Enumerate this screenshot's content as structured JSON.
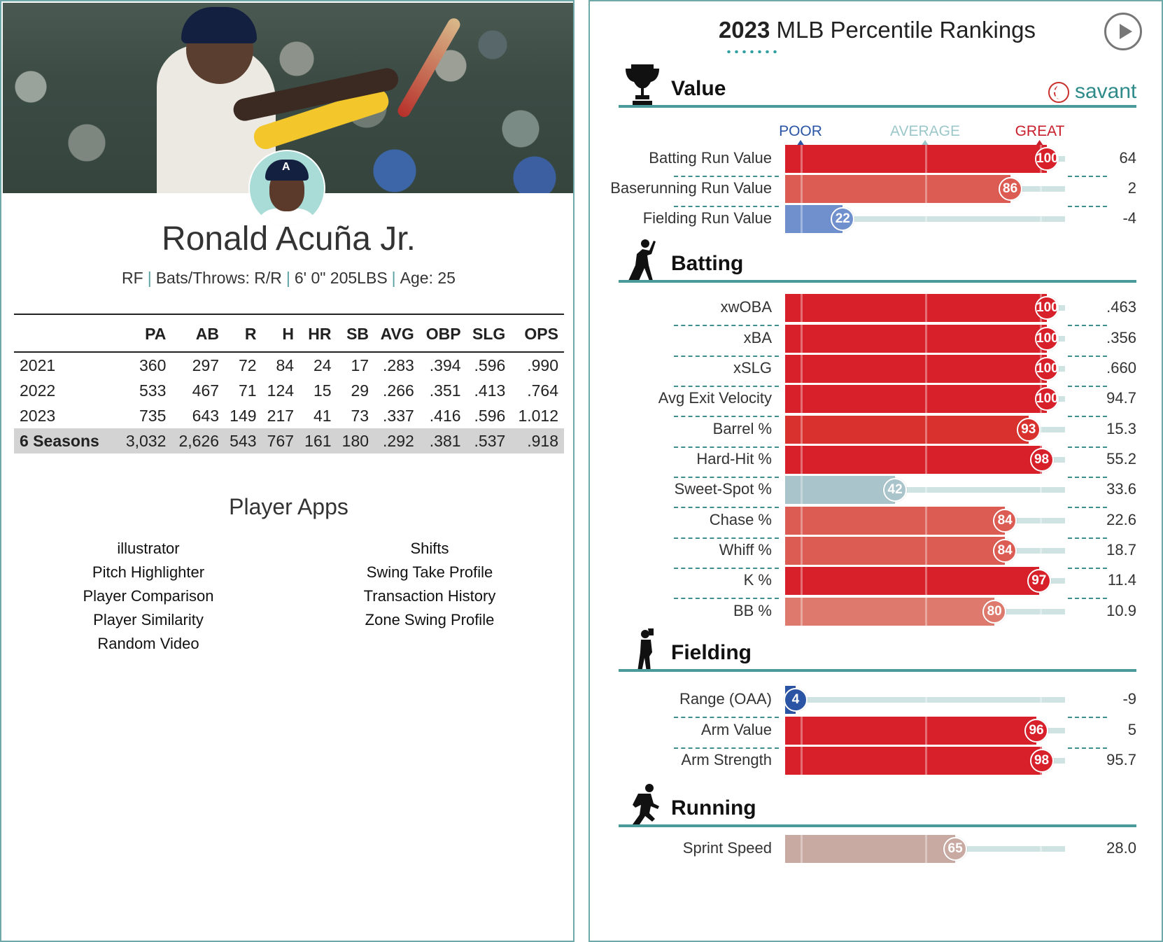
{
  "player": {
    "name": "Ronald Acuña Jr.",
    "position": "RF",
    "bats_throws": "Bats/Throws: R/R",
    "size": "6' 0\" 205LBS",
    "age": "Age: 25"
  },
  "stats": {
    "headers": [
      "",
      "PA",
      "AB",
      "R",
      "H",
      "HR",
      "SB",
      "AVG",
      "OBP",
      "SLG",
      "OPS"
    ],
    "rows": [
      [
        "2021",
        "360",
        "297",
        "72",
        "84",
        "24",
        "17",
        ".283",
        ".394",
        ".596",
        ".990"
      ],
      [
        "2022",
        "533",
        "467",
        "71",
        "124",
        "15",
        "29",
        ".266",
        ".351",
        ".413",
        ".764"
      ],
      [
        "2023",
        "735",
        "643",
        "149",
        "217",
        "41",
        "73",
        ".337",
        ".416",
        ".596",
        "1.012"
      ]
    ],
    "total": [
      "6 Seasons",
      "3,032",
      "2,626",
      "543",
      "767",
      "161",
      "180",
      ".292",
      ".381",
      ".537",
      ".918"
    ]
  },
  "apps": {
    "title": "Player Apps",
    "left": [
      "illustrator",
      "Pitch Highlighter",
      "Player Comparison",
      "Player Similarity",
      "Random Video"
    ],
    "right": [
      "Shifts",
      "Swing Take Profile",
      "Transaction History",
      "Zone Swing Profile"
    ]
  },
  "rankings": {
    "title_year": "2023",
    "title_rest": " MLB Percentile Rankings",
    "brand": "savant",
    "scale": {
      "poor": "POOR",
      "average": "AVERAGE",
      "great": "GREAT"
    },
    "colors": {
      "poor": "#2b55a4",
      "average": "#8fbfc4",
      "great": "#d8202a",
      "scale_poor": "#2b55a4",
      "scale_avg": "#9cc7c9",
      "scale_great": "#c81d2a"
    },
    "sections": [
      {
        "label": "Value",
        "icon": "trophy-icon"
      },
      {
        "label": "Batting",
        "icon": "batter-icon"
      },
      {
        "label": "Fielding",
        "icon": "fielder-icon"
      },
      {
        "label": "Running",
        "icon": "runner-icon"
      }
    ],
    "metrics": [
      {
        "section": 0,
        "name": "Batting Run Value",
        "percentile": 100,
        "value": "64"
      },
      {
        "section": 0,
        "name": "Baserunning Run Value",
        "percentile": 86,
        "value": "2"
      },
      {
        "section": 0,
        "name": "Fielding Run Value",
        "percentile": 22,
        "value": "-4"
      },
      {
        "section": 1,
        "name": "xwOBA",
        "percentile": 100,
        "value": ".463"
      },
      {
        "section": 1,
        "name": "xBA",
        "percentile": 100,
        "value": ".356"
      },
      {
        "section": 1,
        "name": "xSLG",
        "percentile": 100,
        "value": ".660"
      },
      {
        "section": 1,
        "name": "Avg Exit Velocity",
        "percentile": 100,
        "value": "94.7"
      },
      {
        "section": 1,
        "name": "Barrel %",
        "percentile": 93,
        "value": "15.3"
      },
      {
        "section": 1,
        "name": "Hard-Hit %",
        "percentile": 98,
        "value": "55.2"
      },
      {
        "section": 1,
        "name": "Sweet-Spot %",
        "percentile": 42,
        "value": "33.6"
      },
      {
        "section": 1,
        "name": "Chase %",
        "percentile": 84,
        "value": "22.6"
      },
      {
        "section": 1,
        "name": "Whiff %",
        "percentile": 84,
        "value": "18.7"
      },
      {
        "section": 1,
        "name": "K %",
        "percentile": 97,
        "value": "11.4"
      },
      {
        "section": 1,
        "name": "BB %",
        "percentile": 80,
        "value": "10.9"
      },
      {
        "section": 2,
        "name": "Range (OAA)",
        "percentile": 4,
        "value": "-9"
      },
      {
        "section": 2,
        "name": "Arm Value",
        "percentile": 96,
        "value": "5"
      },
      {
        "section": 2,
        "name": "Arm Strength",
        "percentile": 98,
        "value": "95.7"
      },
      {
        "section": 3,
        "name": "Sprint Speed",
        "percentile": 65,
        "value": "28.0"
      }
    ]
  }
}
